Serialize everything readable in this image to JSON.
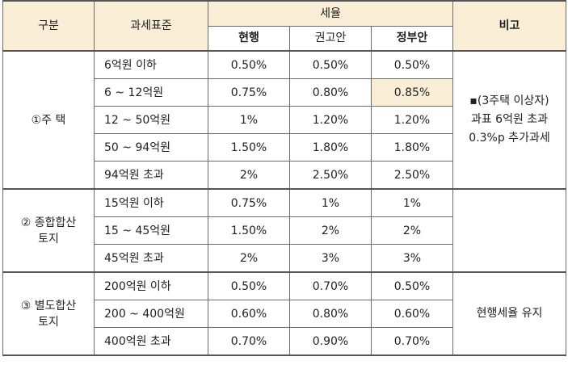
{
  "header": {
    "category": "구분",
    "tax_base": "과세표준",
    "tax_rate": "세율",
    "current": "현행",
    "recommended": "권고안",
    "government": "정부안",
    "remarks": "비고"
  },
  "groups": [
    {
      "label": "①주 택",
      "note_lines": [
        "▪(3주택 이상자)",
        "과표 6억원 초과",
        "0.3%p 추가과세"
      ],
      "rows": [
        {
          "range": "6억원 이하",
          "current": "0.50%",
          "recommended": "0.50%",
          "government": "0.50%"
        },
        {
          "range": "6  ~  12억원",
          "current": "0.75%",
          "recommended": "0.80%",
          "government": "0.85%"
        },
        {
          "range": "12 ~ 50억원",
          "current": "1%",
          "recommended": "1.20%",
          "government": "1.20%"
        },
        {
          "range": "50 ~ 94억원",
          "current": "1.50%",
          "recommended": "1.80%",
          "government": "1.80%"
        },
        {
          "range": "94억원 초과",
          "current": "2%",
          "recommended": "2.50%",
          "government": "2.50%"
        }
      ]
    },
    {
      "label_line1": "② 종합합산",
      "label_line2": "토지",
      "rows": [
        {
          "range": "15억원 이하",
          "current": "0.75%",
          "recommended": "1%",
          "government": "1%"
        },
        {
          "range": "15  ~  45억원",
          "current": "1.50%",
          "recommended": "2%",
          "government": "2%"
        },
        {
          "range": "45억원 초과",
          "current": "2%",
          "recommended": "3%",
          "government": "3%"
        }
      ]
    },
    {
      "label_line1": "③ 별도합산",
      "label_line2": "토지",
      "note": "현행세율 유지",
      "rows": [
        {
          "range": "200억원 이하",
          "current": "0.50%",
          "recommended": "0.70%",
          "government": "0.50%"
        },
        {
          "range": "200 ~ 400억원",
          "current": "0.60%",
          "recommended": "0.80%",
          "government": "0.60%"
        },
        {
          "range": "400억원 초과",
          "current": "0.70%",
          "recommended": "0.90%",
          "government": "0.70%"
        }
      ]
    }
  ],
  "colors": {
    "header_bg": "#fbeed7",
    "highlight_bg": "#fbeed7",
    "border": "#6b6b6b"
  }
}
